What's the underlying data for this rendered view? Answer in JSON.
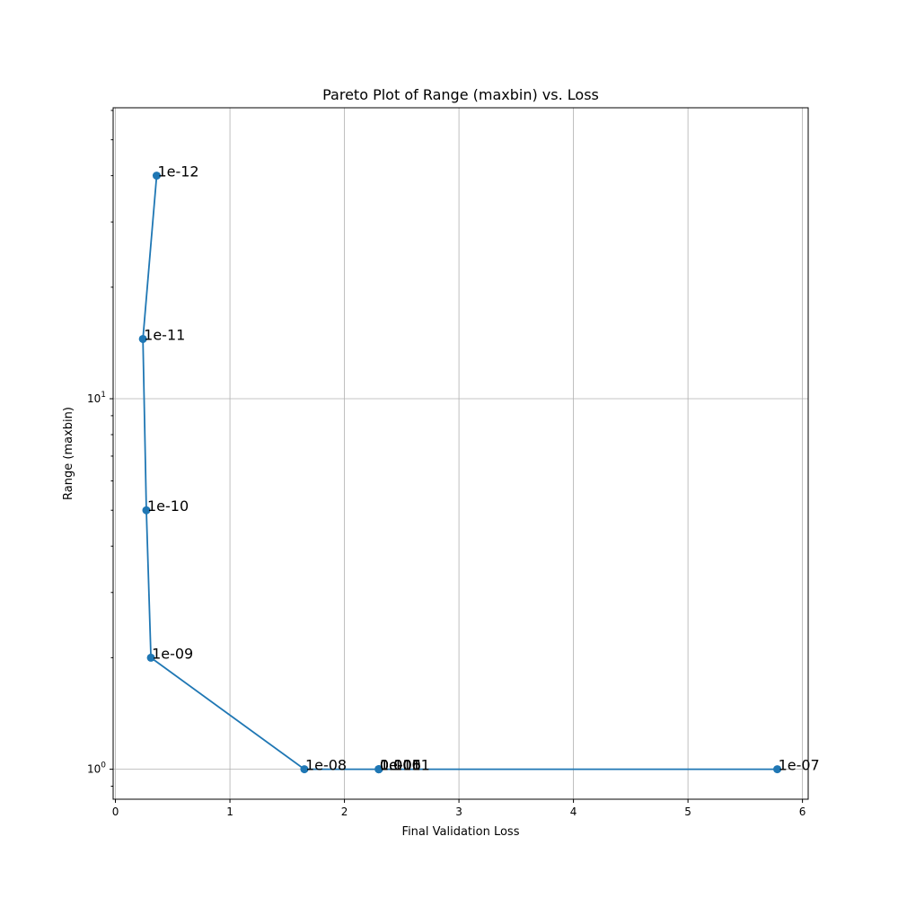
{
  "chart_data": {
    "type": "line",
    "title": "Pareto Plot of Range (maxbin) vs. Loss",
    "xlabel": "Final Validation Loss",
    "ylabel": "Range (maxbin)",
    "xlim": [
      -0.02,
      6.05
    ],
    "ylim": [
      0.83,
      61
    ],
    "y_scale": "log",
    "grid": true,
    "color": "#1f77b4",
    "x_ticks": [
      {
        "value": 0,
        "label": "0"
      },
      {
        "value": 1,
        "label": "1"
      },
      {
        "value": 2,
        "label": "2"
      },
      {
        "value": 3,
        "label": "3"
      },
      {
        "value": 4,
        "label": "4"
      },
      {
        "value": 5,
        "label": "5"
      },
      {
        "value": 6,
        "label": "6"
      }
    ],
    "y_ticks": [
      {
        "value": 1,
        "base": "10",
        "exp": "0"
      },
      {
        "value": 10,
        "base": "10",
        "exp": "1"
      }
    ],
    "points": [
      {
        "x": 0.36,
        "y": 40,
        "label": "1e-12"
      },
      {
        "x": 0.24,
        "y": 14.5,
        "label": "1e-11"
      },
      {
        "x": 0.27,
        "y": 5,
        "label": "1e-10"
      },
      {
        "x": 0.31,
        "y": 2,
        "label": "1e-09"
      },
      {
        "x": 1.65,
        "y": 1,
        "label": "1e-08"
      },
      {
        "x": 2.3,
        "y": 1,
        "label": "1e-06"
      },
      {
        "x": 2.3,
        "y": 1,
        "label": "1e-05"
      },
      {
        "x": 2.3,
        "y": 1,
        "label": "0.0001"
      },
      {
        "x": 2.3,
        "y": 1,
        "label": "0.001"
      },
      {
        "x": 2.3,
        "y": 1,
        "label": "0.01"
      },
      {
        "x": 2.3,
        "y": 1,
        "label": "0.1"
      },
      {
        "x": 5.78,
        "y": 1,
        "label": "1e-07"
      }
    ]
  }
}
